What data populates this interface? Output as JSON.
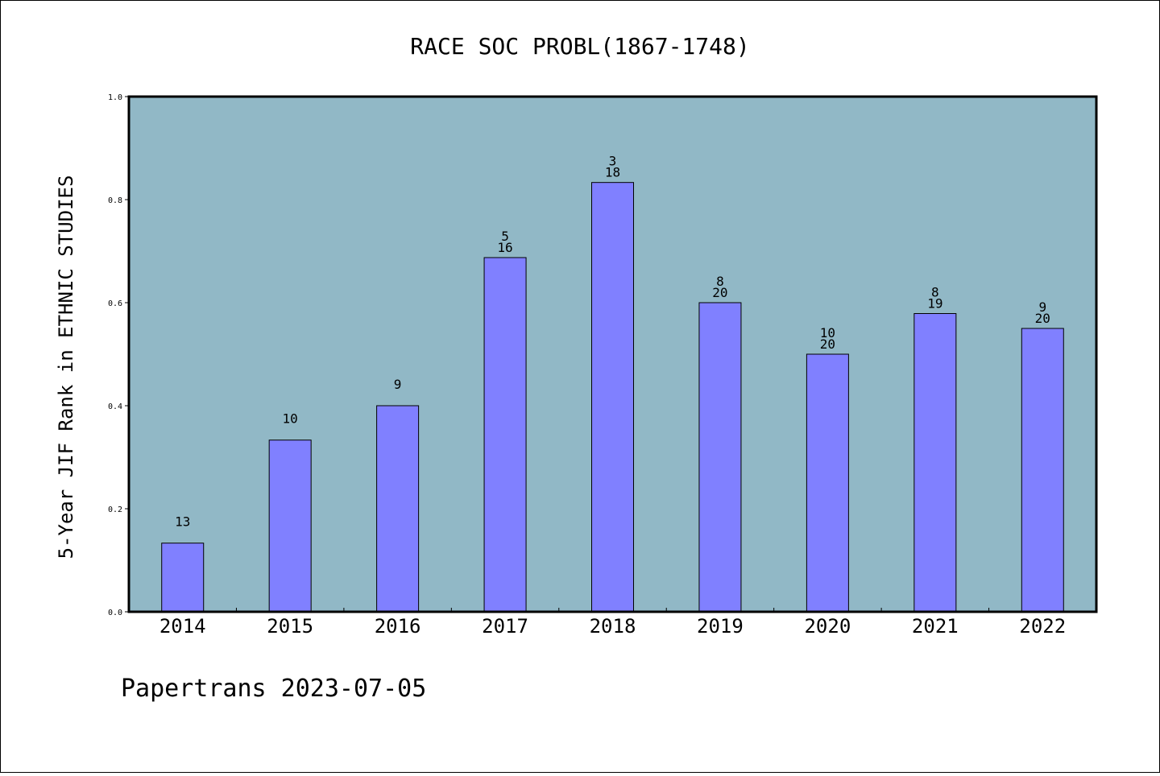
{
  "chart_data": {
    "type": "bar",
    "title": "RACE SOC PROBL(1867-1748)",
    "ylabel": "5-Year JIF Rank in ETHNIC STUDIES",
    "xlabel": "",
    "categories": [
      "2014",
      "2015",
      "2016",
      "2017",
      "2018",
      "2019",
      "2020",
      "2021",
      "2022"
    ],
    "values": [
      0.1333,
      0.3333,
      0.4,
      0.6875,
      0.8333,
      0.6,
      0.5,
      0.5789,
      0.55
    ],
    "bar_labels": [
      [
        "13"
      ],
      [
        "10"
      ],
      [
        "9"
      ],
      [
        "5",
        "16"
      ],
      [
        "3",
        "18"
      ],
      [
        "8",
        "20"
      ],
      [
        "10",
        "20"
      ],
      [
        "8",
        "19"
      ],
      [
        "9",
        "20"
      ]
    ],
    "ylim": [
      0,
      1.0
    ],
    "yticks": [
      "0.0",
      "0.2",
      "0.4",
      "0.6",
      "0.8",
      "1.0"
    ],
    "grid": false,
    "bar_color": "#8080ff",
    "plot_background": "#91b8c6"
  },
  "footer": "Papertrans 2023-07-05"
}
